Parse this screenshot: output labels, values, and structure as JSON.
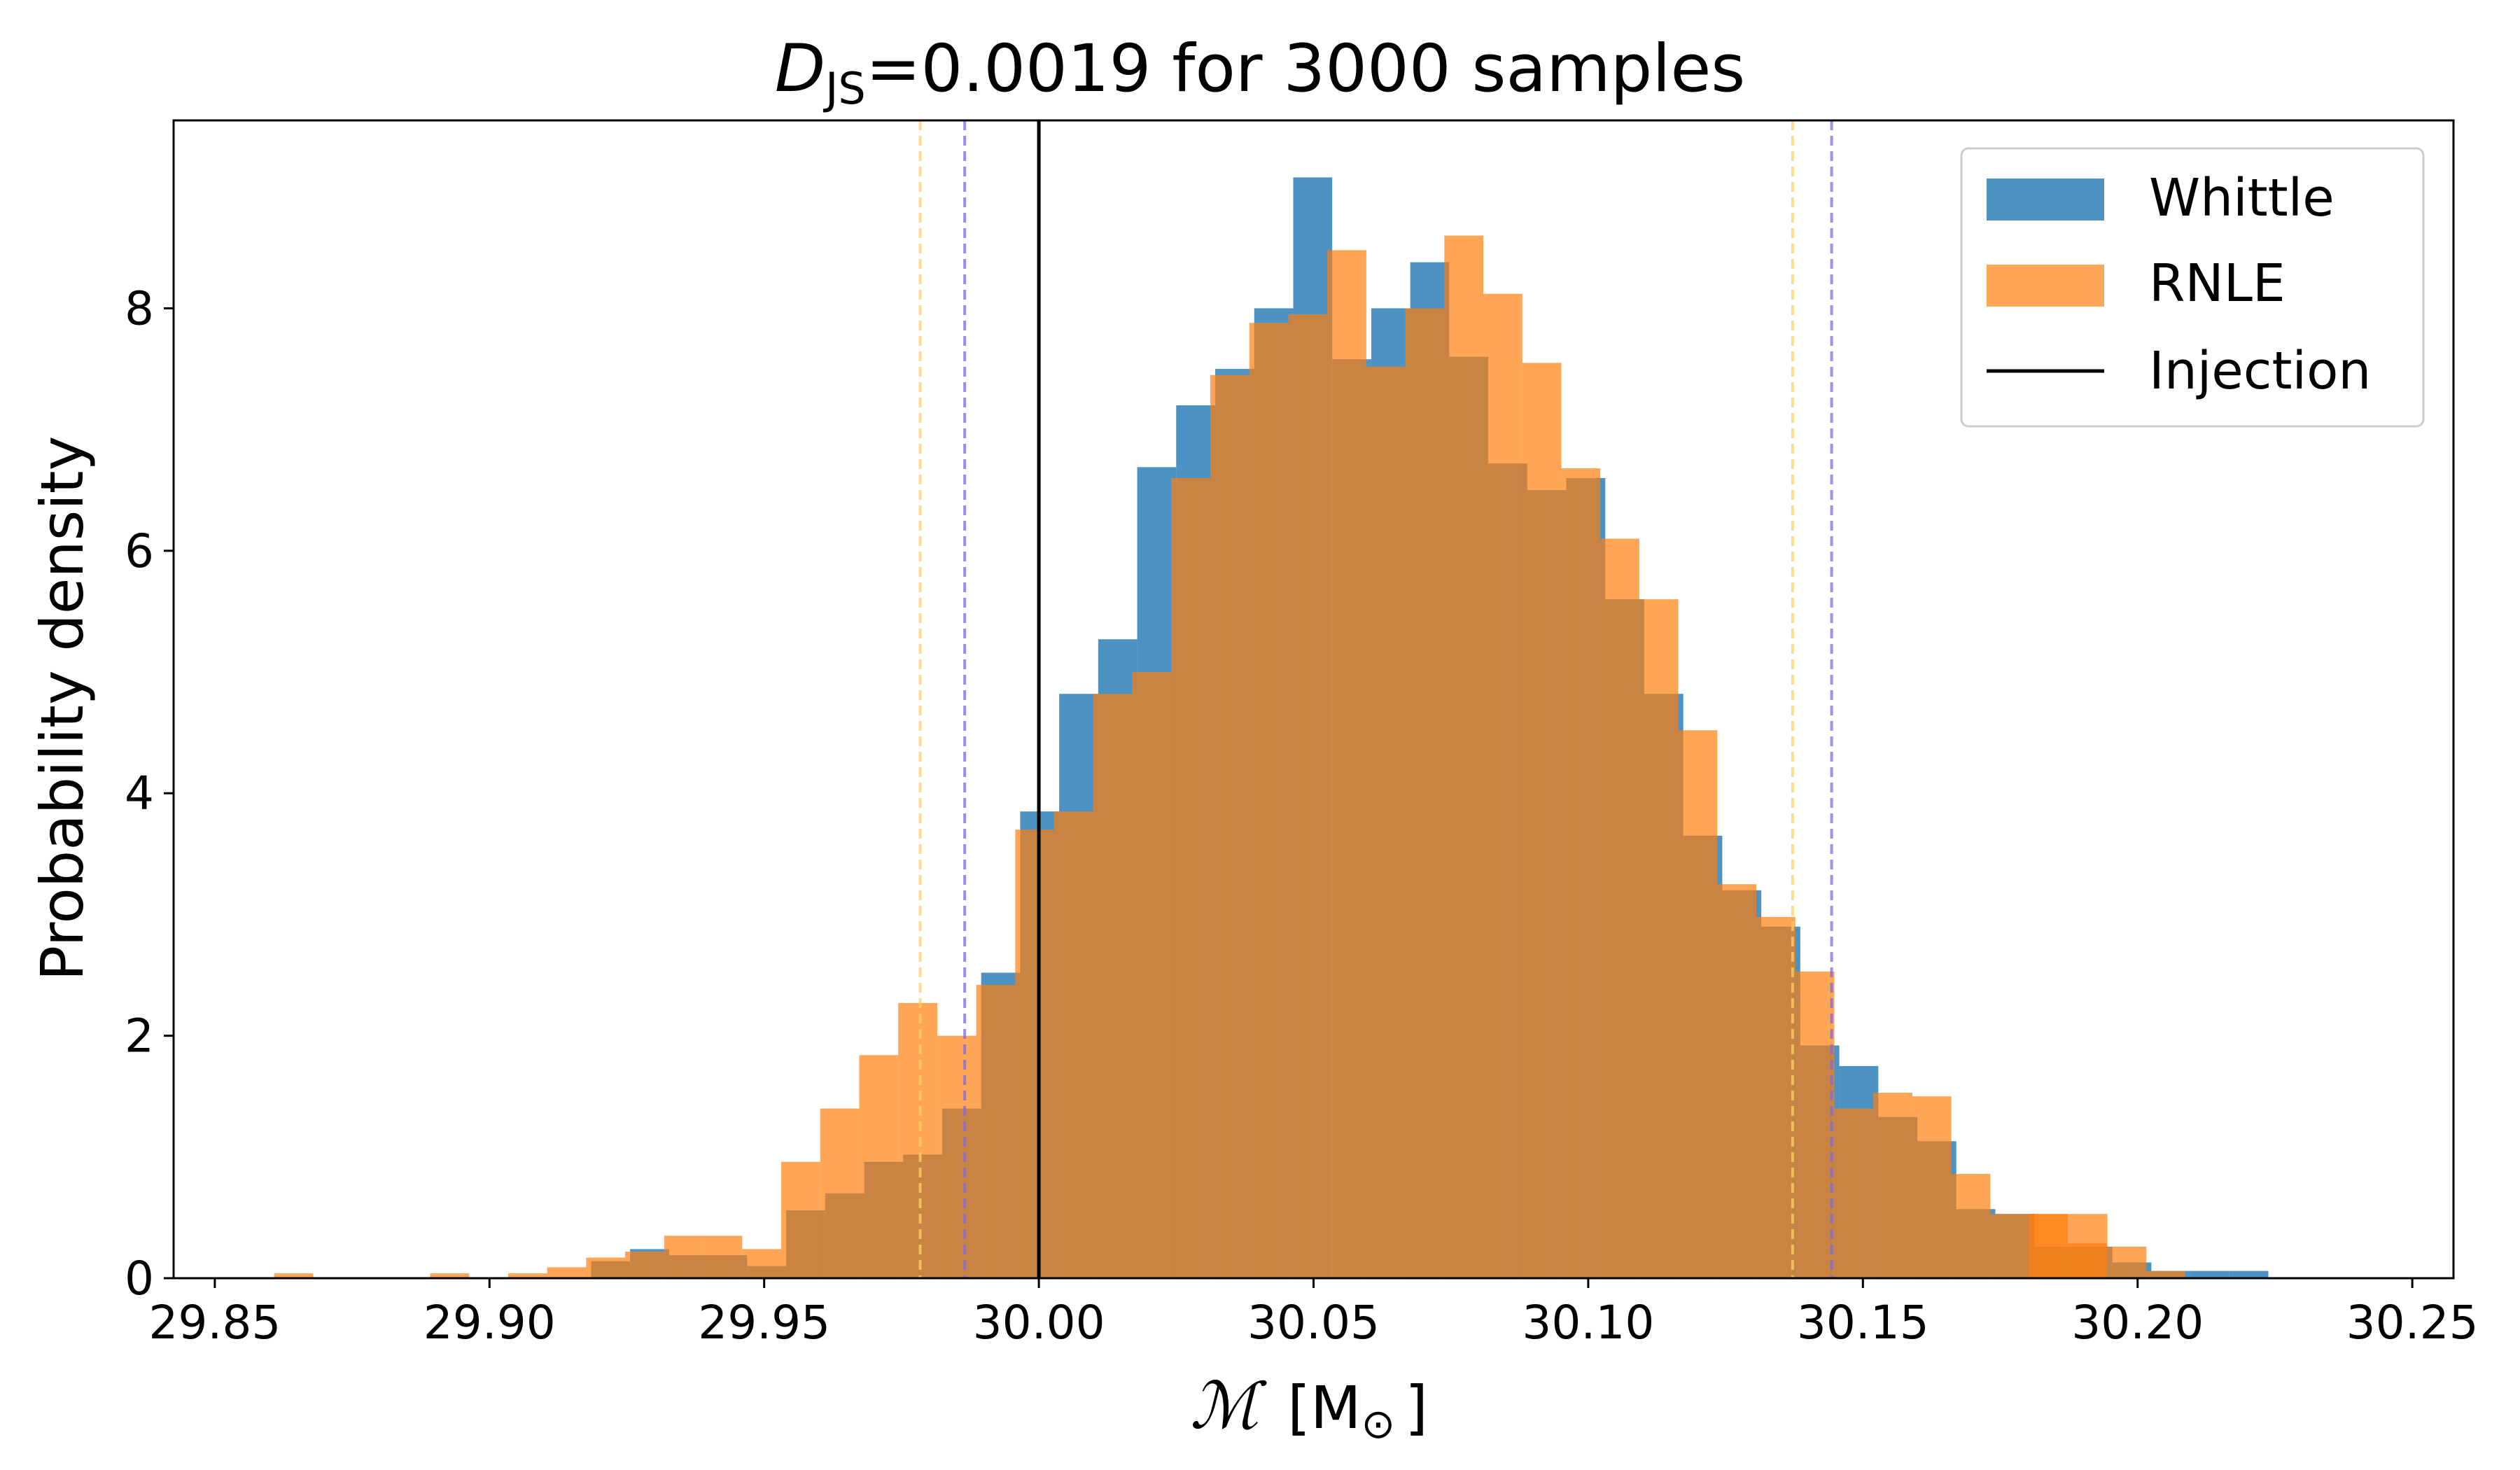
{
  "chart_data": {
    "type": "bar",
    "title_main": "D",
    "title_sub": "JS",
    "title_rest": "=0.0019 for 3000 samples",
    "xlabel_symbol": "ℳ",
    "xlabel_unit_open": "[M",
    "xlabel_unit_sub": "⊙",
    "xlabel_unit_close": "]",
    "ylabel": "Probability density",
    "xlim": [
      29.8425,
      30.2575
    ],
    "ylim": [
      0,
      9.55
    ],
    "x_ticks": [
      29.85,
      29.9,
      29.95,
      30.0,
      30.05,
      30.1,
      30.15,
      30.2,
      30.25
    ],
    "x_tick_labels": [
      "29.85",
      "29.90",
      "29.95",
      "30.00",
      "30.05",
      "30.10",
      "30.15",
      "30.20",
      "30.25"
    ],
    "y_ticks": [
      0,
      2,
      4,
      6,
      8
    ],
    "y_tick_labels": [
      "0",
      "2",
      "4",
      "6",
      "8"
    ],
    "grid": false,
    "legend_position": "top-right",
    "series": [
      {
        "name": "Whittle",
        "color": "#1f77b4",
        "opacity": 0.8,
        "bin_edges": [
          29.9185,
          29.9256,
          29.9327,
          29.9398,
          29.9469,
          29.954,
          29.9611,
          29.9682,
          29.9753,
          29.9824,
          29.9895,
          29.9966,
          30.0037,
          30.0108,
          30.0179,
          30.025,
          30.0321,
          30.0392,
          30.0463,
          30.0534,
          30.0605,
          30.0676,
          30.0747,
          30.0818,
          30.0889,
          30.096,
          30.1031,
          30.1102,
          30.1173,
          30.1244,
          30.1315,
          30.1386,
          30.1457,
          30.1528,
          30.1599,
          30.167,
          30.1741,
          30.1812,
          30.1883,
          30.1954,
          30.2025,
          30.2096,
          30.2167,
          30.2238
        ],
        "values": [
          0.14,
          0.24,
          0.19,
          0.19,
          0.1,
          0.56,
          0.7,
          0.96,
          1.02,
          1.4,
          2.52,
          3.85,
          4.82,
          5.27,
          6.69,
          7.2,
          7.5,
          8.0,
          9.08,
          7.58,
          8.0,
          8.38,
          7.6,
          6.72,
          6.5,
          6.6,
          5.6,
          4.82,
          3.65,
          3.2,
          2.9,
          1.92,
          1.75,
          1.33,
          1.13,
          0.57,
          0.53,
          0.26,
          0.26,
          0.13,
          0.06,
          0.06,
          0.06
        ]
      },
      {
        "name": "RNLE",
        "color": "#ff7f0e",
        "opacity": 0.7,
        "bin_edges": [
          29.8608,
          29.8679,
          29.875,
          29.8821,
          29.8892,
          29.8963,
          29.9034,
          29.9105,
          29.9176,
          29.9247,
          29.9318,
          29.9389,
          29.946,
          29.9531,
          29.9602,
          29.9673,
          29.9744,
          29.9815,
          29.9886,
          29.9957,
          30.0028,
          30.0099,
          30.017,
          30.0241,
          30.0312,
          30.0383,
          30.0454,
          30.0525,
          30.0596,
          30.0667,
          30.0738,
          30.0809,
          30.088,
          30.0951,
          30.1022,
          30.1093,
          30.1164,
          30.1235,
          30.1306,
          30.1377,
          30.1448,
          30.1519,
          30.159,
          30.1661,
          30.1732,
          30.1803,
          30.1874,
          30.1945,
          30.2016,
          30.2087
        ],
        "values": [
          0.04,
          0.0,
          0.0,
          0.0,
          0.04,
          0.0,
          0.04,
          0.09,
          0.17,
          0.22,
          0.35,
          0.35,
          0.24,
          0.96,
          1.4,
          1.84,
          2.27,
          2.0,
          2.42,
          3.7,
          3.85,
          4.82,
          5.0,
          6.6,
          7.45,
          7.88,
          7.95,
          8.48,
          7.52,
          8.0,
          8.6,
          8.12,
          7.55,
          6.68,
          6.1,
          5.6,
          4.52,
          3.25,
          2.98,
          2.53,
          1.4,
          1.53,
          1.5,
          0.86,
          0.53,
          0.53,
          0.53,
          0.26,
          0.06
        ],
        "extra_bars": [
          {
            "x0": 30.1802,
            "x1": 30.1873,
            "y": 0.53
          },
          {
            "x0": 30.1873,
            "x1": 30.1944,
            "y": 0.29
          }
        ]
      }
    ],
    "legend_entries": [
      {
        "label": "Whittle",
        "kind": "patch",
        "color": "#1f77b4"
      },
      {
        "label": "RNLE",
        "kind": "patch",
        "color": "#ff7f0e"
      },
      {
        "label": "Injection",
        "kind": "line",
        "color": "#000000"
      }
    ],
    "vertical_lines": [
      {
        "x": 30.0,
        "color": "#000000",
        "style": "solid",
        "label": "Injection"
      },
      {
        "x": 29.9865,
        "color": "#7b68ee",
        "style": "dashed"
      },
      {
        "x": 30.1443,
        "color": "#7b68ee",
        "style": "dashed"
      },
      {
        "x": 29.9784,
        "color": "#ffd060",
        "style": "dashed"
      },
      {
        "x": 30.1372,
        "color": "#ffd060",
        "style": "dashed"
      }
    ]
  }
}
